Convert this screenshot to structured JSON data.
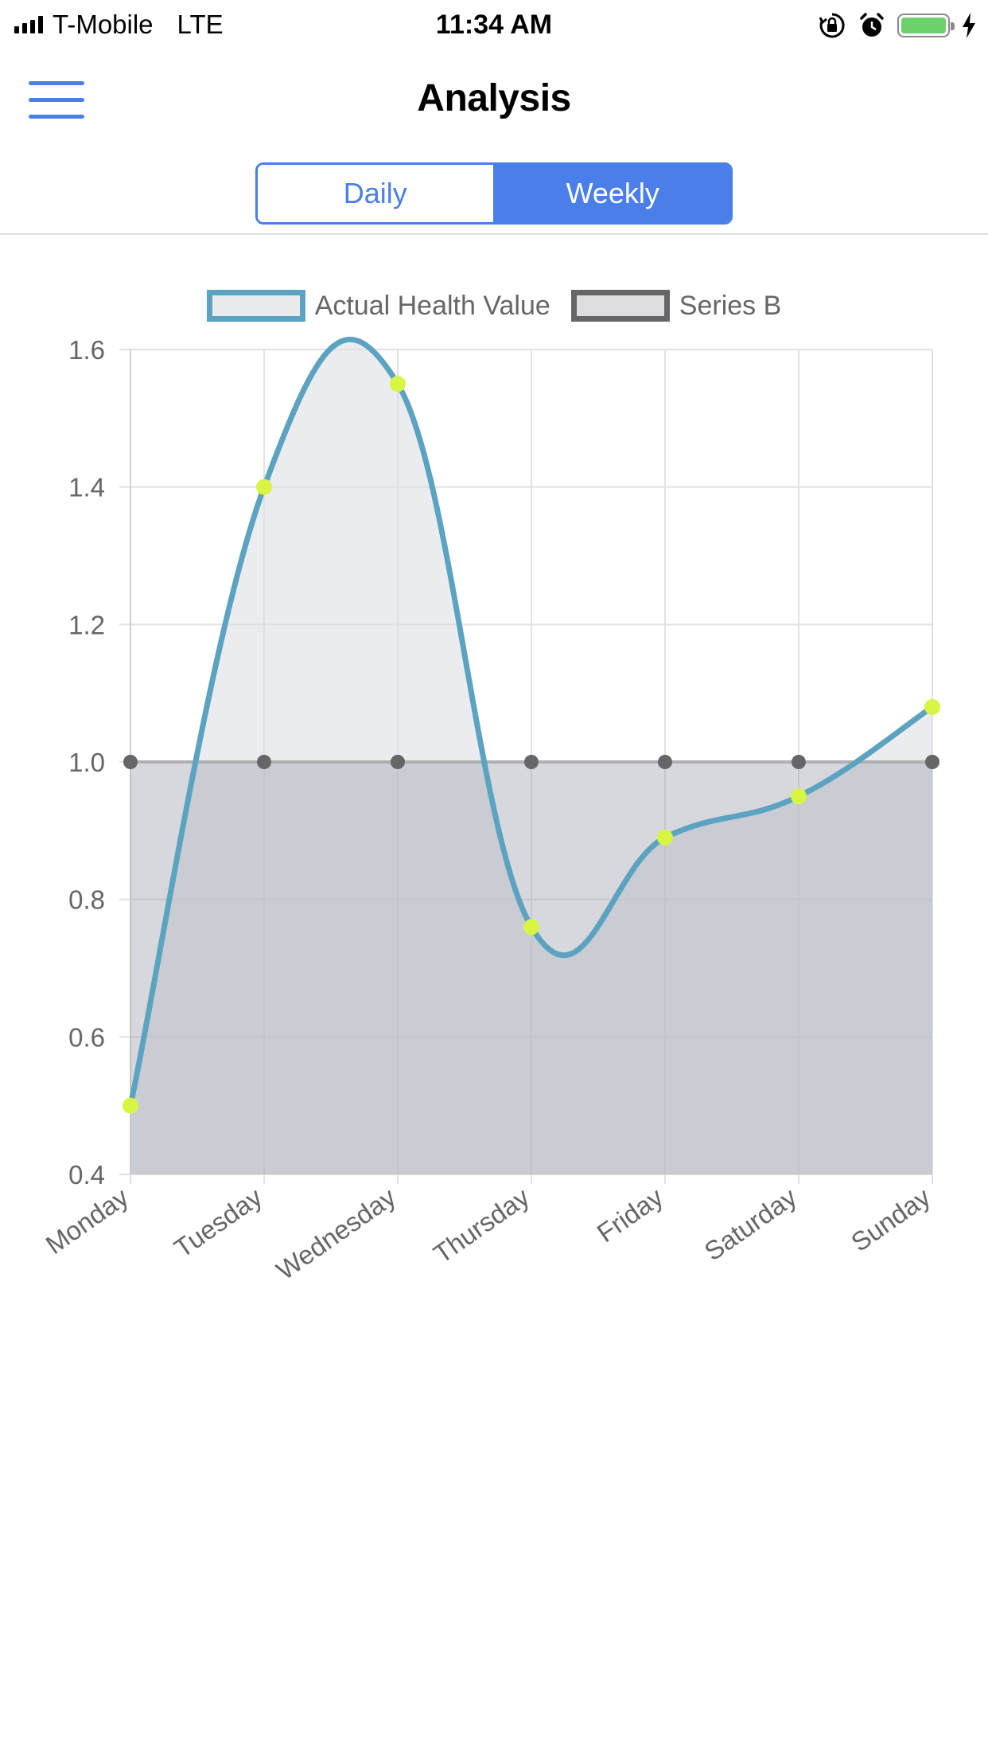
{
  "status_bar": {
    "carrier": "T-Mobile",
    "network": "LTE",
    "time": "11:34 AM",
    "icons": [
      "signal-icon",
      "orientation-lock-icon",
      "alarm-icon",
      "battery-icon",
      "charging-icon"
    ]
  },
  "header": {
    "title": "Analysis",
    "menu_icon": "hamburger-menu-icon"
  },
  "segmented": {
    "options": [
      "Daily",
      "Weekly"
    ],
    "selected": "Weekly"
  },
  "colors": {
    "accent": "#4a7ee8",
    "series_a_line": "#5ba3c0",
    "series_a_point": "#d8f542",
    "series_b_line": "#666666"
  },
  "chart_data": {
    "type": "line",
    "categories": [
      "Monday",
      "Tuesday",
      "Wednesday",
      "Thursday",
      "Friday",
      "Saturday",
      "Sunday"
    ],
    "series": [
      {
        "name": "Actual Health Value",
        "values": [
          0.5,
          1.4,
          1.55,
          0.76,
          0.89,
          0.95,
          1.08
        ]
      },
      {
        "name": "Series B",
        "values": [
          1.0,
          1.0,
          1.0,
          1.0,
          1.0,
          1.0,
          1.0
        ]
      }
    ],
    "ylim": [
      0.4,
      1.6
    ],
    "yticks": [
      "0.4",
      "0.6",
      "0.8",
      "1.0",
      "1.2",
      "1.4",
      "1.6"
    ],
    "legend": "top",
    "grid": true
  }
}
